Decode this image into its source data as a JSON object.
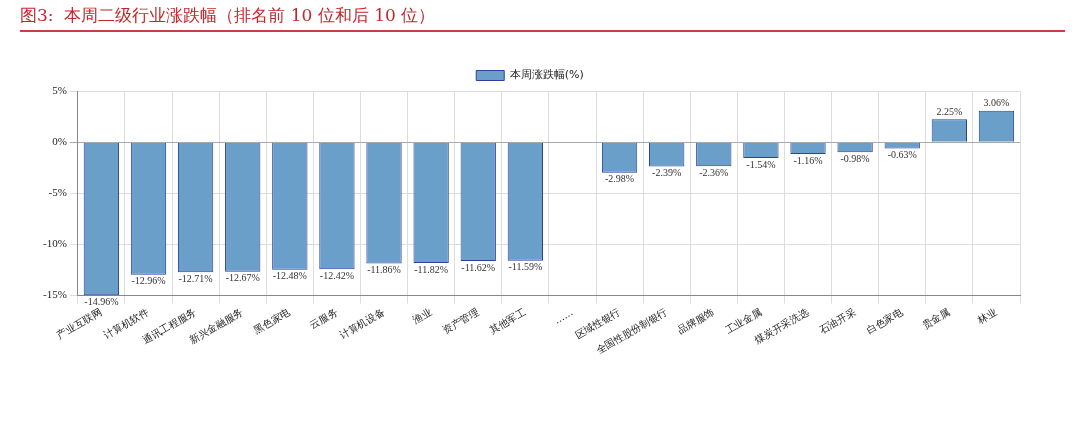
{
  "chart_data": {
    "type": "bar",
    "title": "图3:  本周二级行业涨跌幅（排名前 10 位和后 10 位）",
    "categories": [
      "产业互联网",
      "计算机软件",
      "通讯工程服务",
      "新兴金融服务",
      "黑色家电",
      "云服务",
      "计算机设备",
      "渔业",
      "资产管理",
      "其他军工",
      "……",
      "区域性银行",
      "全国性股份制银行",
      "品牌服饰",
      "工业金属",
      "煤炭开采洗选",
      "石油开采",
      "白色家电",
      "贵金属",
      "林业"
    ],
    "series": [
      {
        "name": "本周涨跌幅(%)",
        "color": "#6a9fca",
        "values": [
          -14.96,
          -12.96,
          -12.71,
          -12.67,
          -12.48,
          -12.42,
          -11.86,
          -11.82,
          -11.62,
          -11.59,
          null,
          -2.98,
          -2.39,
          -2.36,
          -1.54,
          -1.16,
          -0.98,
          -0.63,
          2.25,
          3.06
        ],
        "value_labels": [
          "-14.96%",
          "-12.96%",
          "-12.71%",
          "-12.67%",
          "-12.48%",
          "-12.42%",
          "-11.86%",
          "-11.82%",
          "-11.62%",
          "-11.59%",
          null,
          "-2.98%",
          "-2.39%",
          "-2.36%",
          "-1.54%",
          "-1.16%",
          "-0.98%",
          "-0.63%",
          "2.25%",
          "3.06%"
        ]
      }
    ],
    "ylim": [
      -15,
      5
    ],
    "yticks": [
      {
        "value": -15,
        "label": "-15%"
      },
      {
        "value": -10,
        "label": "-10%"
      },
      {
        "value": -5,
        "label": "-5%"
      },
      {
        "value": 0,
        "label": "0%"
      },
      {
        "value": 5,
        "label": "5%"
      }
    ],
    "grid": true,
    "legend": "top"
  }
}
